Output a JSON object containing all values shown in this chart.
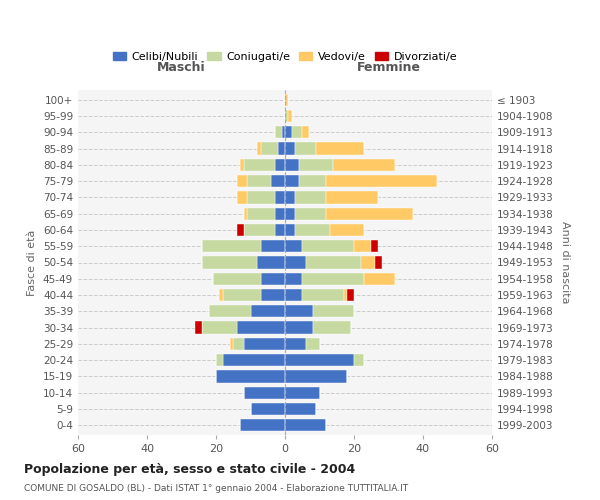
{
  "age_groups": [
    "0-4",
    "5-9",
    "10-14",
    "15-19",
    "20-24",
    "25-29",
    "30-34",
    "35-39",
    "40-44",
    "45-49",
    "50-54",
    "55-59",
    "60-64",
    "65-69",
    "70-74",
    "75-79",
    "80-84",
    "85-89",
    "90-94",
    "95-99",
    "100+"
  ],
  "birth_years": [
    "1999-2003",
    "1994-1998",
    "1989-1993",
    "1984-1988",
    "1979-1983",
    "1974-1978",
    "1969-1973",
    "1964-1968",
    "1959-1963",
    "1954-1958",
    "1949-1953",
    "1944-1948",
    "1939-1943",
    "1934-1938",
    "1929-1933",
    "1924-1928",
    "1919-1923",
    "1914-1918",
    "1909-1913",
    "1904-1908",
    "≤ 1903"
  ],
  "colors": {
    "celibi": "#4472c4",
    "coniugati": "#c5d9a0",
    "vedovi": "#ffc966",
    "divorziati": "#cc0000"
  },
  "maschi": {
    "celibi": [
      13,
      10,
      12,
      20,
      18,
      12,
      14,
      10,
      7,
      7,
      8,
      7,
      3,
      3,
      3,
      4,
      3,
      2,
      1,
      0,
      0
    ],
    "coniugati": [
      0,
      0,
      0,
      0,
      2,
      3,
      10,
      12,
      11,
      14,
      16,
      17,
      9,
      8,
      8,
      7,
      9,
      5,
      2,
      0,
      0
    ],
    "vedovi": [
      0,
      0,
      0,
      0,
      0,
      1,
      0,
      0,
      1,
      0,
      0,
      0,
      0,
      1,
      3,
      3,
      1,
      1,
      0,
      0,
      0
    ],
    "divorziati": [
      0,
      0,
      0,
      0,
      0,
      0,
      2,
      0,
      0,
      0,
      0,
      0,
      2,
      0,
      0,
      0,
      0,
      0,
      0,
      0,
      0
    ]
  },
  "femmine": {
    "celibi": [
      12,
      9,
      10,
      18,
      20,
      6,
      8,
      8,
      5,
      5,
      6,
      5,
      3,
      3,
      3,
      4,
      4,
      3,
      2,
      0,
      0
    ],
    "coniugati": [
      0,
      0,
      0,
      0,
      3,
      4,
      11,
      12,
      12,
      18,
      16,
      15,
      10,
      9,
      9,
      8,
      10,
      6,
      3,
      1,
      0
    ],
    "vedovi": [
      0,
      0,
      0,
      0,
      0,
      0,
      0,
      0,
      1,
      9,
      4,
      5,
      10,
      25,
      15,
      32,
      18,
      14,
      2,
      1,
      1
    ],
    "divorziati": [
      0,
      0,
      0,
      0,
      0,
      0,
      0,
      0,
      2,
      0,
      2,
      2,
      0,
      0,
      0,
      0,
      0,
      0,
      0,
      0,
      0
    ]
  },
  "xlim": 60,
  "title": "Popolazione per età, sesso e stato civile - 2004",
  "subtitle": "COMUNE DI GOSALDO (BL) - Dati ISTAT 1° gennaio 2004 - Elaborazione TUTTITALIA.IT",
  "xlabel_left": "Maschi",
  "xlabel_right": "Femmine",
  "ylabel_left": "Fasce di età",
  "ylabel_right": "Anni di nascita",
  "legend_labels": [
    "Celibi/Nubili",
    "Coniugati/e",
    "Vedovi/e",
    "Divorziati/e"
  ],
  "bg_color": "#f5f5f5"
}
